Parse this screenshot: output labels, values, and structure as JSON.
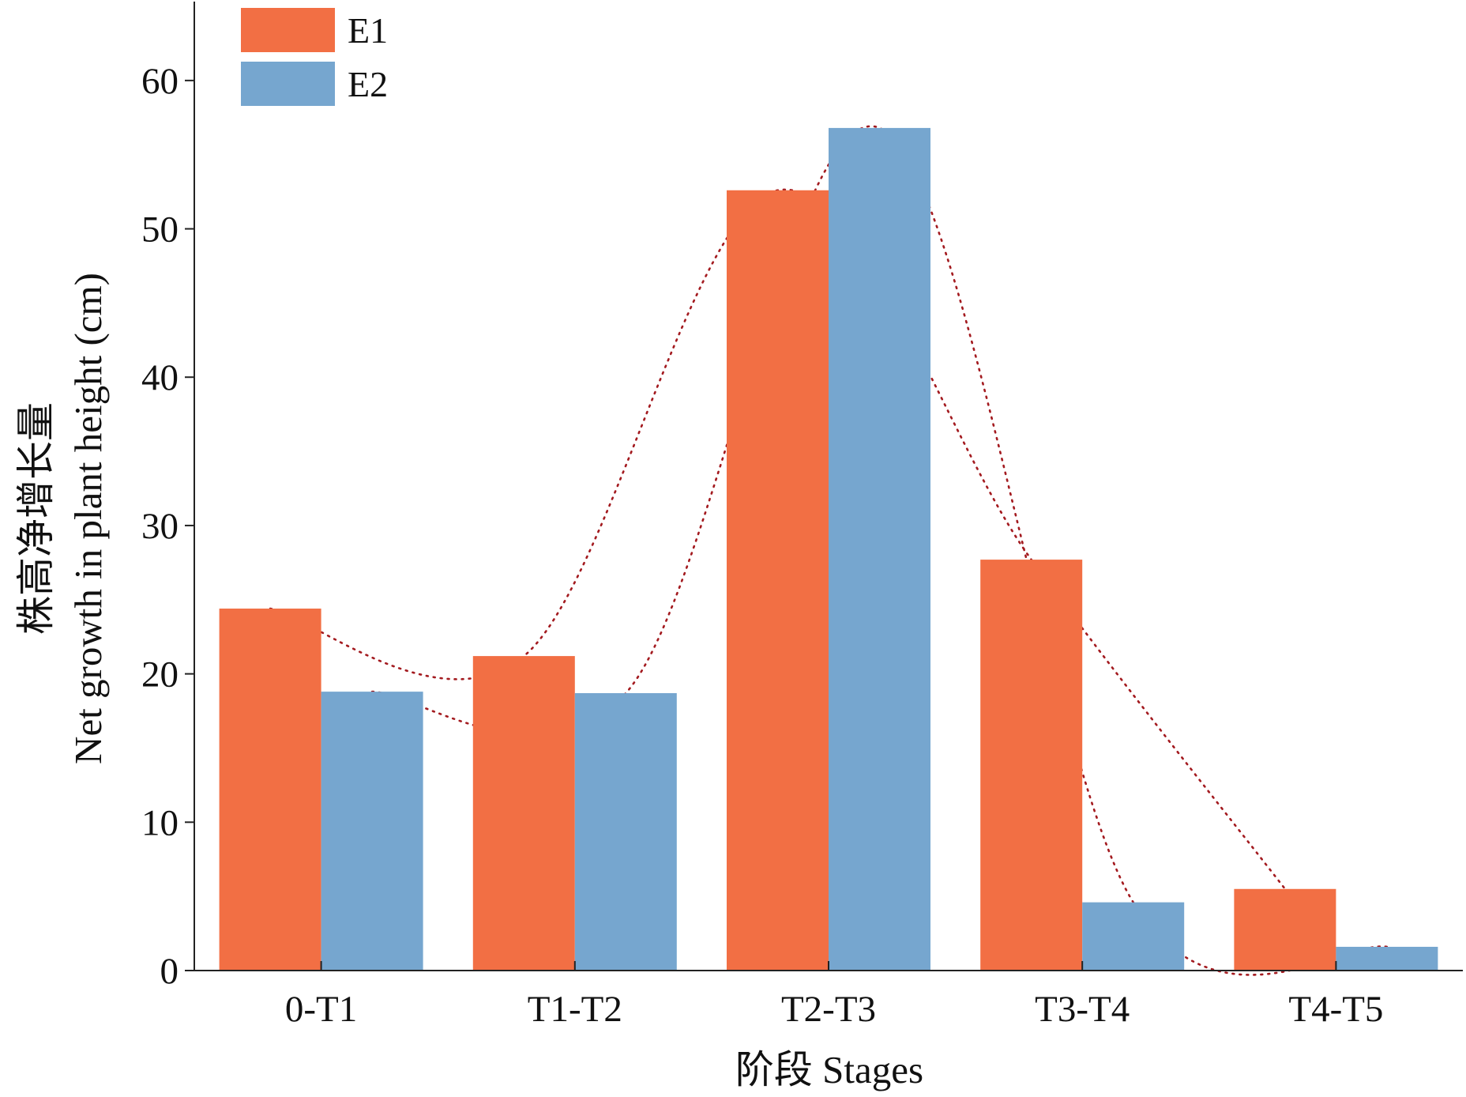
{
  "colors": {
    "E1": "#F26F44",
    "E2": "#76A6CF",
    "trend": "#A31A1F",
    "axis": "#222222"
  },
  "chart_data": {
    "type": "bar",
    "categories": [
      "0-T1",
      "T1-T2",
      "T2-T3",
      "T3-T4",
      "T4-T5"
    ],
    "series": [
      {
        "name": "E1",
        "values": [
          24.4,
          21.2,
          52.6,
          27.7,
          5.5
        ]
      },
      {
        "name": "E2",
        "values": [
          18.8,
          18.7,
          56.8,
          4.6,
          1.6
        ]
      }
    ],
    "xlabel": "阶段 Stages",
    "ylabel_line1": "株高净增长量",
    "ylabel_line2": "Net growth in plant height (cm)",
    "ylim": [
      0,
      65
    ],
    "yticks": [
      0,
      10,
      20,
      30,
      40,
      50,
      60
    ],
    "legend_position": "top-left",
    "grid": false,
    "trendlines": "dotted curves through each series"
  }
}
